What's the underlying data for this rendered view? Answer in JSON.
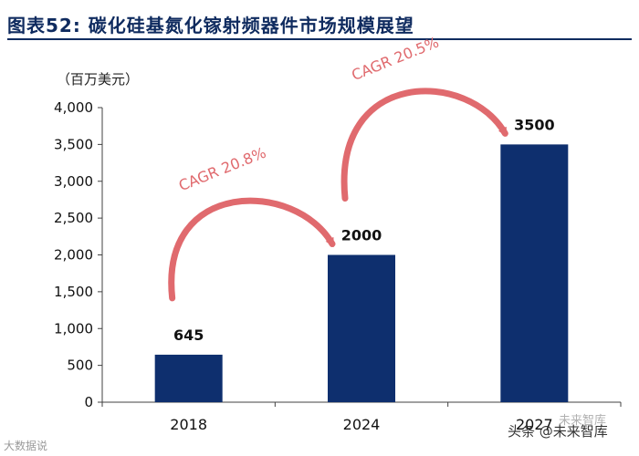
{
  "figure_title": "图表52:  碳化硅基氮化镓射频器件市场规模展望",
  "unit_label": "（百万美元）",
  "colors": {
    "bar": "#0e2f6e",
    "arrow": "#e06a6e",
    "axis": "#404040",
    "title": "#0f2b5f"
  },
  "chart_data": {
    "type": "bar",
    "title": "碳化硅基氮化镓射频器件市场规模展望",
    "ylabel": "百万美元",
    "xlabel": "",
    "categories": [
      "2018",
      "2024",
      "2027"
    ],
    "values": [
      645,
      2000,
      3500
    ],
    "data_labels": [
      "645",
      "2000",
      "3500"
    ],
    "ylim": [
      0,
      4000
    ],
    "yticks": [
      0,
      500,
      1000,
      1500,
      2000,
      2500,
      3000,
      3500,
      4000
    ],
    "ytick_labels": [
      "0",
      "500",
      "1,000",
      "1,500",
      "2,000",
      "2,500",
      "3,000",
      "3,500",
      "4,000"
    ],
    "grid": false,
    "annotations": [
      {
        "text": "CAGR 20.8%",
        "from": "2018",
        "to": "2024"
      },
      {
        "text": "CAGR 20.5%",
        "from": "2024",
        "to": "2027"
      }
    ]
  },
  "watermarks": {
    "left": "大数据说",
    "right": "头条 @未来智库",
    "right_logo": "未来智库"
  }
}
